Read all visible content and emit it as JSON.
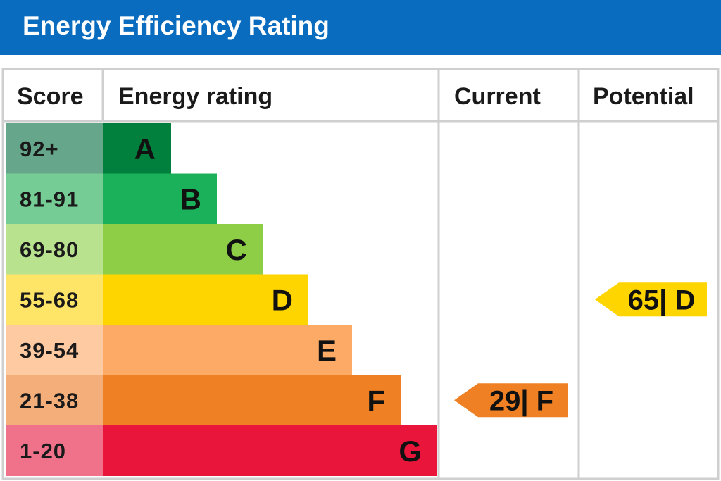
{
  "header": {
    "title": "Energy Efficiency Rating"
  },
  "chart_data": {
    "type": "table",
    "columns": [
      "Score",
      "Energy rating",
      "Current",
      "Potential"
    ],
    "bands": [
      {
        "score": "92+",
        "rating": "A",
        "color": "#007f3d",
        "score_color": "#66a68a"
      },
      {
        "score": "81-91",
        "rating": "B",
        "color": "#1bb15a",
        "score_color": "#75cc95"
      },
      {
        "score": "69-80",
        "rating": "C",
        "color": "#8dce46",
        "score_color": "#b9e28f"
      },
      {
        "score": "55-68",
        "rating": "D",
        "color": "#ffd500",
        "score_color": "#ffe567"
      },
      {
        "score": "39-54",
        "rating": "E",
        "color": "#fcaa65",
        "score_color": "#fdcaa2"
      },
      {
        "score": "21-38",
        "rating": "F",
        "color": "#ef8023",
        "score_color": "#f4ae79"
      },
      {
        "score": "1-20",
        "rating": "G",
        "color": "#e9153b",
        "score_color": "#ef728a"
      }
    ],
    "current": {
      "value": 29,
      "rating": "F",
      "label": "29| F",
      "color": "#ef8023"
    },
    "potential": {
      "value": 65,
      "rating": "D",
      "label": "65| D",
      "color": "#ffd500"
    }
  }
}
